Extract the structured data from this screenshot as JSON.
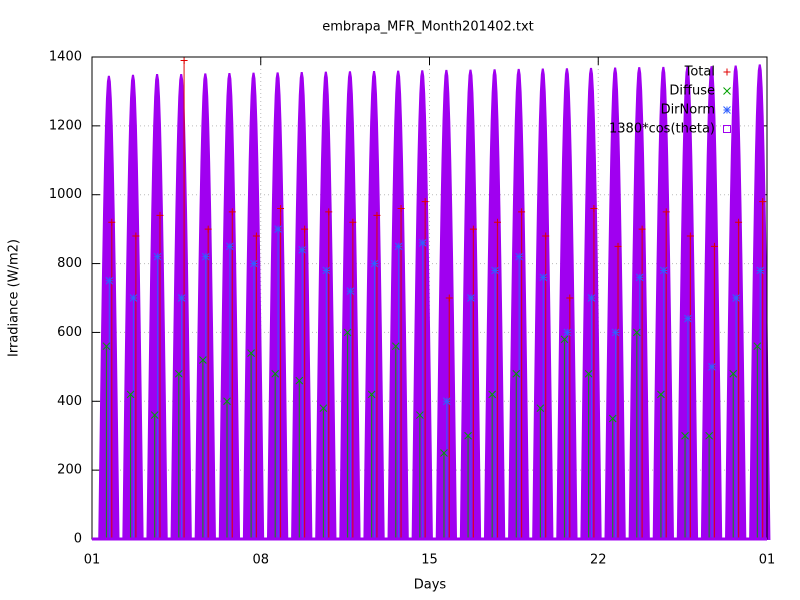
{
  "chart_data": {
    "type": "scatter",
    "title": "embrapa_MFR_Month201402.txt",
    "xlabel": "Days",
    "ylabel": "Irradiance (W/m2)",
    "x": [
      0.7,
      1.7,
      2.7,
      3.7,
      4.7,
      5.7,
      6.7,
      7.7,
      8.7,
      9.7,
      10.7,
      11.7,
      12.7,
      13.7,
      14.7,
      15.7,
      16.7,
      17.7,
      18.7,
      19.7,
      20.7,
      21.7,
      22.7,
      23.7,
      24.7,
      25.7,
      26.7,
      27.7
    ],
    "series": [
      {
        "name": "Total",
        "color": "#e00000",
        "marker": "plus",
        "values": [
          920,
          880,
          940,
          1390,
          900,
          950,
          880,
          960,
          900,
          950,
          920,
          940,
          960,
          980,
          700,
          900,
          920,
          950,
          880,
          700,
          960,
          850,
          900,
          950,
          880,
          850,
          920,
          980
        ]
      },
      {
        "name": "Diffuse",
        "color": "#00a000",
        "marker": "cross",
        "values": [
          560,
          420,
          360,
          480,
          520,
          400,
          540,
          480,
          460,
          380,
          600,
          420,
          560,
          360,
          250,
          300,
          420,
          480,
          380,
          580,
          480,
          350,
          600,
          420,
          300,
          300,
          480,
          560
        ]
      },
      {
        "name": "DirNorm",
        "color": "#3060ff",
        "marker": "star",
        "values": [
          750,
          700,
          820,
          700,
          820,
          850,
          800,
          900,
          840,
          780,
          720,
          800,
          850,
          860,
          400,
          700,
          780,
          820,
          760,
          600,
          700,
          600,
          760,
          780,
          640,
          500,
          700,
          780
        ]
      },
      {
        "name": "1380*cos(theta)",
        "color": "#a000f0",
        "marker": "square",
        "values": [
          1345,
          1348,
          1350,
          1350,
          1352,
          1353,
          1354,
          1355,
          1356,
          1357,
          1358,
          1359,
          1360,
          1361,
          1362,
          1363,
          1364,
          1365,
          1366,
          1367,
          1368,
          1369,
          1370,
          1371,
          1372,
          1373,
          1375,
          1378
        ]
      }
    ],
    "xlim": [
      0,
      28
    ],
    "xticks": [
      {
        "value": 0,
        "label": "01"
      },
      {
        "value": 7,
        "label": "08"
      },
      {
        "value": 14,
        "label": "15"
      },
      {
        "value": 21,
        "label": "22"
      },
      {
        "value": 28,
        "label": "01"
      }
    ],
    "ylim": [
      0,
      1400
    ],
    "yticks": [
      0,
      200,
      400,
      600,
      800,
      1000,
      1200,
      1400
    ],
    "grid": true,
    "legend": "top-right"
  }
}
